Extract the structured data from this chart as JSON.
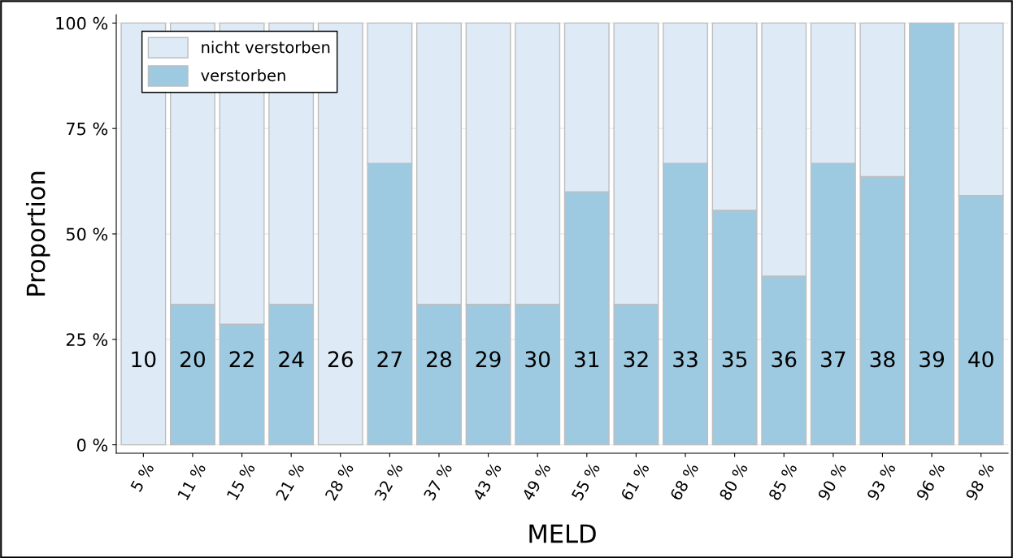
{
  "chart_data": {
    "type": "bar",
    "stacked": true,
    "xlabel": "MELD",
    "ylabel": "Proportion",
    "categories": [
      "5 %",
      "11 %",
      "15 %",
      "21 %",
      "28 %",
      "32 %",
      "37 %",
      "43 %",
      "49 %",
      "55 %",
      "61 %",
      "68 %",
      "80 %",
      "85 %",
      "90 %",
      "93 %",
      "96 %",
      "98 %"
    ],
    "series": [
      {
        "name": "verstorben",
        "color": "#9ecae1",
        "values": [
          0,
          33.3,
          28.6,
          33.3,
          0,
          66.7,
          33.3,
          33.3,
          33.3,
          60,
          33.3,
          66.7,
          55.6,
          40,
          66.7,
          63.6,
          100,
          59.1
        ]
      },
      {
        "name": "nicht verstorben",
        "color": "#deebf7",
        "values": [
          100,
          66.7,
          71.4,
          66.7,
          100,
          33.3,
          66.7,
          66.7,
          66.7,
          40,
          66.7,
          33.3,
          44.4,
          60,
          33.3,
          36.4,
          0,
          40.9
        ]
      }
    ],
    "ylim": [
      -2,
      102
    ],
    "yticks": [
      {
        "value": 0,
        "label": "0 %"
      },
      {
        "value": 25,
        "label": "25 %"
      },
      {
        "value": 50,
        "label": "50 %"
      },
      {
        "value": 75,
        "label": "75 %"
      },
      {
        "value": 100,
        "label": "100 %"
      }
    ],
    "grid": "y",
    "legend": "top left",
    "annotations": [
      "10",
      "20",
      "22",
      "24",
      "26",
      "27",
      "28",
      "29",
      "30",
      "31",
      "32",
      "33",
      "35",
      "36",
      "37",
      "38",
      "39",
      "40"
    ]
  }
}
